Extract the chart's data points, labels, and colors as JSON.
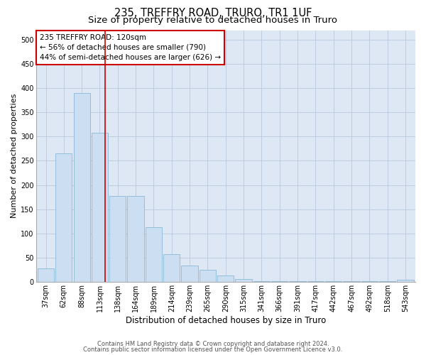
{
  "title1": "235, TREFFRY ROAD, TRURO, TR1 1UF",
  "title2": "Size of property relative to detached houses in Truro",
  "xlabel": "Distribution of detached houses by size in Truro",
  "ylabel": "Number of detached properties",
  "bar_color": "#ccdff2",
  "bar_edge_color": "#8ab8d8",
  "grid_color": "#b8c8dc",
  "background_color": "#dde8f4",
  "annotation_box_color": "#cc0000",
  "vline_color": "#cc0000",
  "categories": [
    "37sqm",
    "62sqm",
    "88sqm",
    "113sqm",
    "138sqm",
    "164sqm",
    "189sqm",
    "214sqm",
    "239sqm",
    "265sqm",
    "290sqm",
    "315sqm",
    "341sqm",
    "366sqm",
    "391sqm",
    "417sqm",
    "442sqm",
    "467sqm",
    "492sqm",
    "518sqm",
    "543sqm"
  ],
  "values": [
    28,
    265,
    390,
    308,
    178,
    178,
    113,
    57,
    33,
    24,
    13,
    6,
    1,
    1,
    1,
    1,
    1,
    1,
    1,
    1,
    4
  ],
  "ylim": [
    0,
    520
  ],
  "yticks": [
    0,
    50,
    100,
    150,
    200,
    250,
    300,
    350,
    400,
    450,
    500
  ],
  "vline_x": 3.28,
  "annotation_line1": "235 TREFFRY ROAD: 120sqm",
  "annotation_line2": "← 56% of detached houses are smaller (790)",
  "annotation_line3": "44% of semi-detached houses are larger (626) →",
  "footer1": "Contains HM Land Registry data © Crown copyright and database right 2024.",
  "footer2": "Contains public sector information licensed under the Open Government Licence v3.0.",
  "title1_fontsize": 10.5,
  "title2_fontsize": 9.5,
  "xlabel_fontsize": 8.5,
  "ylabel_fontsize": 8,
  "tick_fontsize": 7,
  "annotation_fontsize": 7.5,
  "footer_fontsize": 6
}
